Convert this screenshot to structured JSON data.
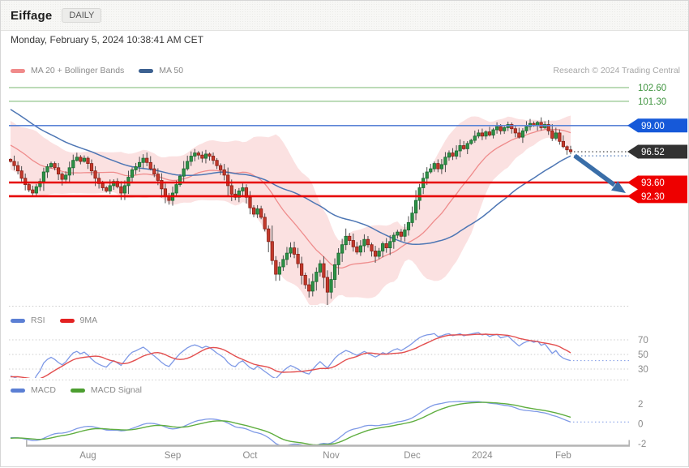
{
  "header": {
    "title": "Eiffage",
    "timeframe": "DAILY"
  },
  "datetime": "Monday, February 5, 2024 10:38:41 AM CET",
  "attribution": "Research © 2024 Trading Central",
  "legends": {
    "price": [
      {
        "label": "MA 20 + Bollinger Bands",
        "color": "#f08a8a"
      },
      {
        "label": "MA 50",
        "color": "#3c6191"
      }
    ],
    "rsi": [
      {
        "label": "RSI",
        "color": "#5b7fd4"
      },
      {
        "label": "9MA",
        "color": "#e32222"
      }
    ],
    "macd": [
      {
        "label": "MACD",
        "color": "#5b7fd4"
      },
      {
        "label": "MACD Signal",
        "color": "#4c9e30"
      }
    ]
  },
  "colors": {
    "up": "#2e9147",
    "up_border": "#176b2f",
    "down": "#c43a2c",
    "down_border": "#8a1d13",
    "wick": "#4d4d4d",
    "band": "rgba(243,163,163,0.32)",
    "ma20": "#ef8c8c",
    "ma50": "#4d76b4",
    "resistance_line": "#a5cf9f",
    "resistance_text": "#3f943f",
    "pivot_line": "#5b84d6",
    "pivot_box": "#1659d9",
    "last_box": "#323232",
    "last_leader": "#333333",
    "support_line": "#e60000",
    "support_box": "#ee0000",
    "rsi": "#7e99e6",
    "rsi_ma": "#e34f4f",
    "macd": "#7e99e6",
    "macd_signal": "#5fae3f",
    "grid": "#cccccc",
    "axis": "#b4b4b4",
    "scale_text": "#8a8a8a",
    "arrow": "#3a6ea8"
  },
  "chart_data": {
    "type": "candlestick",
    "symbol": "Eiffage",
    "interval": "DAILY",
    "overlays": [
      "MA 20",
      "Bollinger Bands (20,2)",
      "MA 50"
    ],
    "indicators": [
      "RSI(14) with 9MA",
      "MACD(12,26,9) with signal"
    ],
    "levels": [
      {
        "value": 102.6,
        "label": "102.60",
        "role": "resistance"
      },
      {
        "value": 101.3,
        "label": "101.30",
        "role": "resistance"
      },
      {
        "value": 99.0,
        "label": "99.00",
        "role": "pivot"
      },
      {
        "value": 96.52,
        "label": "96.52",
        "role": "last"
      },
      {
        "value": 93.6,
        "label": "93.60",
        "role": "support"
      },
      {
        "value": 92.3,
        "label": "92.30",
        "role": "support"
      }
    ],
    "annotation": {
      "type": "bearish-arrow",
      "from_price": 96.52,
      "to_price": 92.3
    },
    "rsi_scale": [
      70,
      50,
      30
    ],
    "macd_scale": [
      2,
      0,
      -2
    ],
    "x_axis": [
      {
        "label": "Aug",
        "index": 21
      },
      {
        "label": "Sep",
        "index": 44
      },
      {
        "label": "Oct",
        "index": 65
      },
      {
        "label": "Nov",
        "index": 87
      },
      {
        "label": "Dec",
        "index": 109
      },
      {
        "label": "2024",
        "index": 128
      },
      {
        "label": "Feb",
        "index": 150
      }
    ],
    "pre_closes": [
      106.0,
      105.8,
      105.9,
      105.5,
      105.2,
      105.4,
      105.0,
      104.6,
      104.8,
      104.3,
      103.9,
      104.1,
      103.6,
      103.2,
      103.4,
      102.9,
      102.5,
      102.7,
      102.2,
      101.8,
      102.0,
      101.5,
      101.1,
      101.3,
      100.8,
      100.4,
      100.6,
      100.1,
      99.7,
      99.9,
      99.4,
      99.0,
      99.2,
      98.7,
      98.3,
      98.5,
      98.0,
      97.6,
      97.8,
      97.3,
      96.9,
      97.1,
      96.6,
      96.3,
      96.5,
      96.1,
      95.8,
      96.0,
      95.7,
      95.8
    ],
    "closes": [
      95.6,
      95.2,
      94.7,
      94.0,
      93.4,
      92.9,
      92.6,
      93.2,
      93.7,
      94.6,
      95.1,
      95.4,
      95.0,
      94.4,
      93.9,
      94.3,
      95.0,
      95.7,
      96.0,
      95.6,
      95.9,
      95.4,
      94.7,
      94.0,
      93.5,
      93.1,
      92.8,
      93.3,
      93.7,
      93.2,
      92.6,
      93.3,
      94.1,
      94.8,
      95.1,
      95.5,
      95.9,
      95.5,
      94.9,
      94.4,
      93.8,
      93.0,
      92.3,
      91.9,
      92.6,
      93.4,
      94.2,
      94.9,
      95.6,
      96.1,
      96.4,
      96.2,
      95.9,
      96.3,
      96.1,
      95.7,
      95.2,
      94.8,
      94.3,
      93.3,
      92.5,
      92.2,
      92.8,
      93.1,
      92.2,
      91.2,
      90.6,
      91.1,
      90.3,
      89.2,
      88.0,
      86.2,
      84.9,
      85.6,
      86.3,
      86.9,
      87.4,
      86.8,
      85.9,
      84.8,
      83.9,
      83.3,
      84.2,
      85.1,
      85.9,
      84.6,
      83.2,
      84.4,
      85.8,
      86.9,
      87.7,
      88.5,
      88.1,
      87.5,
      87.0,
      87.6,
      88.2,
      87.7,
      87.1,
      86.6,
      87.1,
      87.8,
      87.4,
      88.0,
      88.6,
      88.9,
      88.5,
      89.1,
      89.8,
      90.7,
      91.9,
      93.1,
      94.0,
      94.6,
      94.9,
      95.4,
      94.9,
      95.3,
      96.0,
      96.4,
      96.1,
      96.6,
      97.1,
      96.8,
      97.3,
      97.6,
      98.0,
      98.3,
      98.0,
      98.4,
      98.1,
      98.6,
      98.9,
      98.5,
      98.8,
      99.1,
      98.7,
      98.3,
      97.9,
      98.5,
      98.9,
      99.2,
      99.0,
      99.3,
      98.8,
      99.1,
      98.5,
      97.8,
      98.3,
      97.5,
      97.0,
      96.7,
      96.52
    ]
  }
}
